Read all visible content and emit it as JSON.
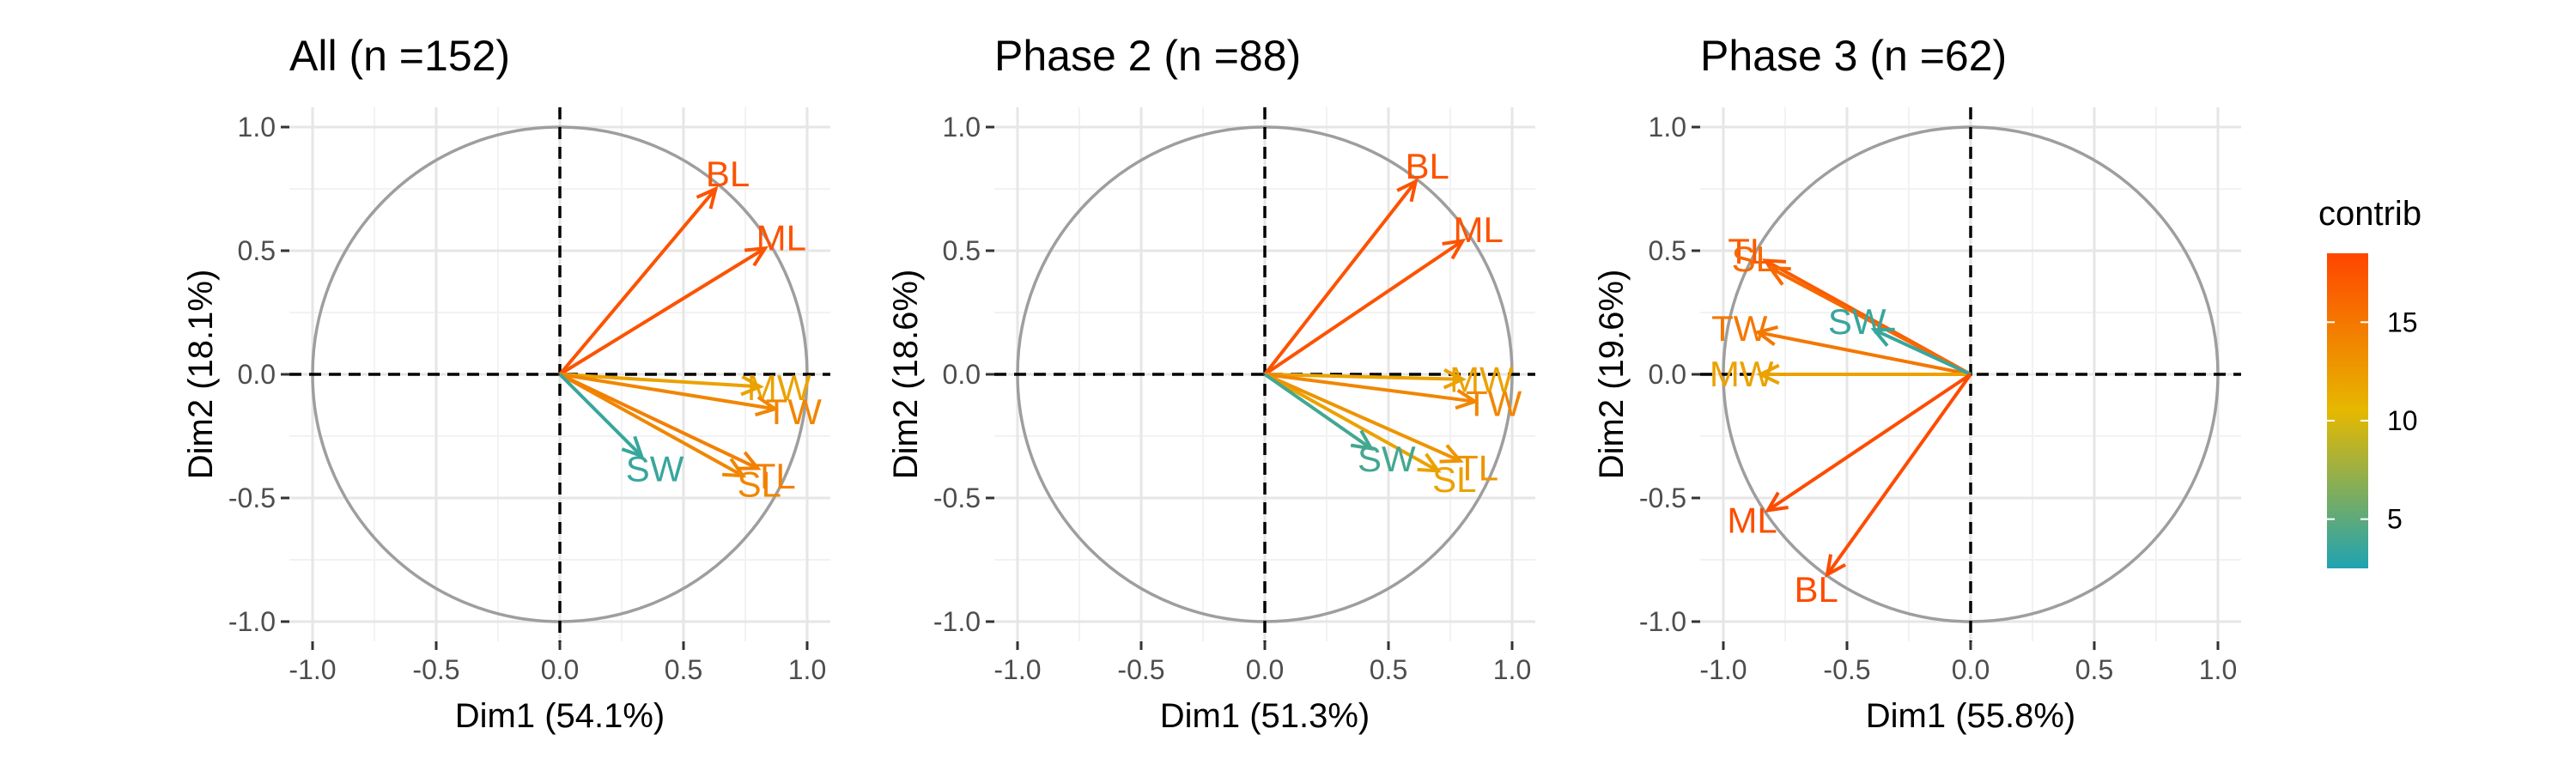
{
  "chart_data": [
    {
      "type": "variable_correlation_circle",
      "title": "All (n =152)",
      "xlabel": "Dim1 (54.1%)",
      "ylabel": "Dim2 (18.1%)",
      "xlim": [
        -1.0,
        1.0
      ],
      "ylim": [
        -1.0,
        1.0
      ],
      "ticks": [
        "-1.0",
        "-0.5",
        "0.0",
        "0.5",
        "1.0"
      ],
      "grid": true,
      "variables": [
        {
          "name": "BL",
          "x": 0.63,
          "y": 0.75,
          "contrib": 17.5
        },
        {
          "name": "ML",
          "x": 0.83,
          "y": 0.51,
          "contrib": 17.5
        },
        {
          "name": "MW",
          "x": 0.81,
          "y": -0.05,
          "contrib": 12.0
        },
        {
          "name": "TW",
          "x": 0.87,
          "y": -0.14,
          "contrib": 14.0
        },
        {
          "name": "SL",
          "x": 0.74,
          "y": -0.41,
          "contrib": 14.0
        },
        {
          "name": "TL",
          "x": 0.8,
          "y": -0.38,
          "contrib": 14.5
        },
        {
          "name": "SW",
          "x": 0.33,
          "y": -0.33,
          "contrib": 3.5
        }
      ]
    },
    {
      "type": "variable_correlation_circle",
      "title": "Phase 2 (n =88)",
      "xlabel": "Dim1 (51.3%)",
      "ylabel": "Dim2 (18.6%)",
      "xlim": [
        -1.0,
        1.0
      ],
      "ylim": [
        -1.0,
        1.0
      ],
      "ticks": [
        "-1.0",
        "-0.5",
        "0.0",
        "0.5",
        "1.0"
      ],
      "grid": true,
      "variables": [
        {
          "name": "BL",
          "x": 0.61,
          "y": 0.78,
          "contrib": 17.5
        },
        {
          "name": "ML",
          "x": 0.8,
          "y": 0.54,
          "contrib": 17.5
        },
        {
          "name": "MW",
          "x": 0.8,
          "y": -0.02,
          "contrib": 12.0
        },
        {
          "name": "TW",
          "x": 0.85,
          "y": -0.11,
          "contrib": 14.0
        },
        {
          "name": "SL",
          "x": 0.7,
          "y": -0.39,
          "contrib": 12.0
        },
        {
          "name": "TL",
          "x": 0.79,
          "y": -0.35,
          "contrib": 13.0
        },
        {
          "name": "SW",
          "x": 0.43,
          "y": -0.3,
          "contrib": 4.0
        }
      ]
    },
    {
      "type": "variable_correlation_circle",
      "title": "Phase 3 (n =62)",
      "xlabel": "Dim1 (55.8%)",
      "ylabel": "Dim2 (19.6%)",
      "xlim": [
        -1.0,
        1.0
      ],
      "ylim": [
        -1.0,
        1.0
      ],
      "ticks": [
        "-1.0",
        "-0.5",
        "0.0",
        "0.5",
        "1.0"
      ],
      "grid": true,
      "variables": [
        {
          "name": "TL",
          "x": -0.83,
          "y": 0.46,
          "contrib": 17.0
        },
        {
          "name": "SL",
          "x": -0.81,
          "y": 0.43,
          "contrib": 16.0
        },
        {
          "name": "TW",
          "x": -0.86,
          "y": 0.17,
          "contrib": 15.0
        },
        {
          "name": "MW",
          "x": -0.85,
          "y": 0.0,
          "contrib": 12.0
        },
        {
          "name": "SW",
          "x": -0.39,
          "y": 0.18,
          "contrib": 3.5
        },
        {
          "name": "ML",
          "x": -0.82,
          "y": -0.55,
          "contrib": 18.0
        },
        {
          "name": "BL",
          "x": -0.58,
          "y": -0.81,
          "contrib": 18.0
        }
      ]
    }
  ],
  "legend": {
    "title": "contrib",
    "ticks": [
      "15",
      "10",
      "5"
    ],
    "tick_values": [
      15,
      10,
      5
    ],
    "min": 2.5,
    "max": 18.5,
    "colors": [
      "#1FA3B3",
      "#E6B800",
      "#FF4500"
    ]
  },
  "colors": {
    "circle": "#9e9e9e",
    "grid_major": "#e6e6e6",
    "grid_minor": "#f2f2f2",
    "zero_lines": "#000000"
  }
}
